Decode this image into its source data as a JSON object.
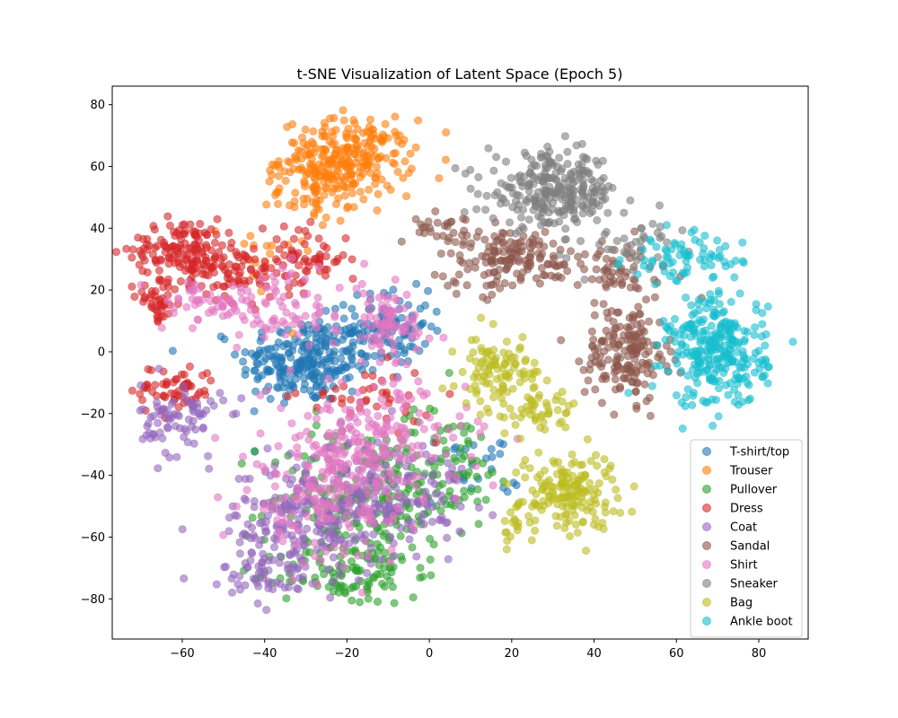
{
  "chart_data": {
    "type": "scatter",
    "title": "t-SNE Visualization of Latent Space (Epoch 5)",
    "xlabel": "",
    "ylabel": "",
    "xlim": [
      -77,
      92
    ],
    "ylim": [
      -93,
      86
    ],
    "xticks": [
      -60,
      -40,
      -20,
      0,
      20,
      40,
      60,
      80
    ],
    "yticks": [
      -80,
      -60,
      -40,
      -20,
      0,
      20,
      40,
      60,
      80
    ],
    "xtick_labels": [
      "−60",
      "−40",
      "−20",
      "0",
      "20",
      "40",
      "60",
      "80"
    ],
    "ytick_labels": [
      "−80",
      "−60",
      "−40",
      "−20",
      "0",
      "20",
      "40",
      "60",
      "80"
    ],
    "grid": false,
    "legend_position": "lower-right",
    "marker_alpha": 0.6,
    "series": [
      {
        "name": "T-shirt/top",
        "color": "#1f77b4",
        "clusters": [
          {
            "cx": -30,
            "cy": -3,
            "sx": 8,
            "sy": 7,
            "n": 240
          },
          {
            "cx": -10,
            "cy": 8,
            "sx": 5,
            "sy": 6,
            "n": 110
          },
          {
            "cx": 10,
            "cy": -38,
            "sx": 6,
            "sy": 6,
            "n": 25
          }
        ]
      },
      {
        "name": "Trouser",
        "color": "#ff7f0e",
        "clusters": [
          {
            "cx": -20,
            "cy": 63,
            "sx": 8,
            "sy": 6,
            "n": 240
          },
          {
            "cx": -27,
            "cy": 52,
            "sx": 5,
            "sy": 5,
            "n": 70
          },
          {
            "cx": -40,
            "cy": 30,
            "sx": 5,
            "sy": 8,
            "n": 15
          }
        ]
      },
      {
        "name": "Pullover",
        "color": "#2ca02c",
        "clusters": [
          {
            "cx": -15,
            "cy": -48,
            "sx": 12,
            "sy": 12,
            "n": 230
          },
          {
            "cx": -20,
            "cy": -72,
            "sx": 8,
            "sy": 5,
            "n": 90
          },
          {
            "cx": 5,
            "cy": -35,
            "sx": 8,
            "sy": 8,
            "n": 60
          }
        ]
      },
      {
        "name": "Dress",
        "color": "#d62728",
        "clusters": [
          {
            "cx": -60,
            "cy": 33,
            "sx": 6,
            "sy": 5,
            "n": 130
          },
          {
            "cx": -47,
            "cy": 27,
            "sx": 6,
            "sy": 5,
            "n": 90
          },
          {
            "cx": -30,
            "cy": 30,
            "sx": 5,
            "sy": 5,
            "n": 60
          },
          {
            "cx": -66,
            "cy": 16,
            "sx": 2.5,
            "sy": 3,
            "n": 40
          },
          {
            "cx": -62,
            "cy": -12,
            "sx": 5,
            "sy": 4,
            "n": 60
          },
          {
            "cx": -15,
            "cy": -15,
            "sx": 8,
            "sy": 5,
            "n": 40
          }
        ]
      },
      {
        "name": "Coat",
        "color": "#9467bd",
        "clusters": [
          {
            "cx": -30,
            "cy": -55,
            "sx": 10,
            "sy": 10,
            "n": 220
          },
          {
            "cx": -10,
            "cy": -45,
            "sx": 10,
            "sy": 9,
            "n": 150
          },
          {
            "cx": -60,
            "cy": -22,
            "sx": 5,
            "sy": 6,
            "n": 80
          },
          {
            "cx": -40,
            "cy": -72,
            "sx": 5,
            "sy": 4,
            "n": 40
          }
        ]
      },
      {
        "name": "Sandal",
        "color": "#8c564b",
        "clusters": [
          {
            "cx": 20,
            "cy": 30,
            "sx": 9,
            "sy": 5,
            "n": 150
          },
          {
            "cx": 4,
            "cy": 40,
            "sx": 4,
            "sy": 2.5,
            "n": 30
          },
          {
            "cx": 48,
            "cy": 0,
            "sx": 5,
            "sy": 8,
            "n": 170
          },
          {
            "cx": 45,
            "cy": 25,
            "sx": 7,
            "sy": 5,
            "n": 50
          }
        ]
      },
      {
        "name": "Shirt",
        "color": "#e377c2",
        "clusters": [
          {
            "cx": -15,
            "cy": -30,
            "sx": 12,
            "sy": 10,
            "n": 220
          },
          {
            "cx": -10,
            "cy": 8,
            "sx": 6,
            "sy": 6,
            "n": 80
          },
          {
            "cx": -35,
            "cy": 15,
            "sx": 10,
            "sy": 6,
            "n": 80
          },
          {
            "cx": -25,
            "cy": -50,
            "sx": 10,
            "sy": 9,
            "n": 120
          },
          {
            "cx": -55,
            "cy": 15,
            "sx": 5,
            "sy": 4,
            "n": 40
          }
        ]
      },
      {
        "name": "Sneaker",
        "color": "#7f7f7f",
        "clusters": [
          {
            "cx": 30,
            "cy": 52,
            "sx": 8,
            "sy": 6,
            "n": 260
          },
          {
            "cx": 50,
            "cy": 35,
            "sx": 5,
            "sy": 5,
            "n": 40
          }
        ]
      },
      {
        "name": "Bag",
        "color": "#bcbd22",
        "clusters": [
          {
            "cx": 17,
            "cy": -7,
            "sx": 5,
            "sy": 6,
            "n": 110
          },
          {
            "cx": 28,
            "cy": -20,
            "sx": 4,
            "sy": 4,
            "n": 40
          },
          {
            "cx": 34,
            "cy": -45,
            "sx": 6,
            "sy": 6,
            "n": 160
          },
          {
            "cx": 22,
            "cy": -56,
            "sx": 2.5,
            "sy": 3,
            "n": 20
          }
        ]
      },
      {
        "name": "Ankle boot",
        "color": "#17becf",
        "clusters": [
          {
            "cx": 70,
            "cy": 0,
            "sx": 6,
            "sy": 9,
            "n": 280
          },
          {
            "cx": 62,
            "cy": 30,
            "sx": 7,
            "sy": 4,
            "n": 70
          }
        ]
      }
    ]
  }
}
